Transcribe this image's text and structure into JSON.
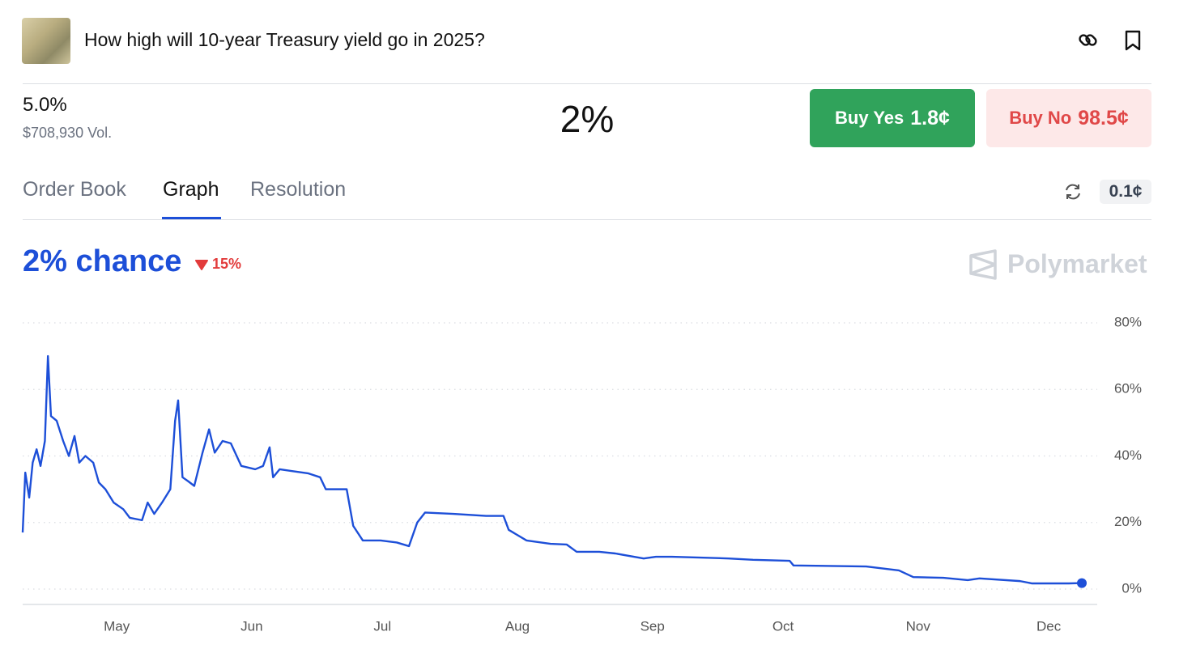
{
  "header": {
    "title": "How high will 10-year Treasury yield go in 2025?",
    "outcome": "5.0%",
    "volume": "$708,930 Vol.",
    "probability": "2%"
  },
  "buttons": {
    "yes_label": "Buy Yes",
    "yes_price": "1.8¢",
    "no_label": "Buy No",
    "no_price": "98.5¢"
  },
  "tabs": [
    "Order Book",
    "Graph",
    "Resolution"
  ],
  "tick_size": "0.1¢",
  "summary": {
    "chance": "2% chance",
    "change": "15%",
    "brand": "Polymarket"
  },
  "chart_data": {
    "type": "line",
    "x": [
      99.4,
      100.0,
      100.9,
      101.7,
      102.6,
      103.5,
      104.5,
      105.2,
      105.9,
      107.2,
      108.7,
      110.0,
      111.3,
      112.4,
      113.8,
      115.6,
      116.9,
      118.4,
      120.3,
      122.5,
      124.0,
      126.8,
      128.1,
      129.6,
      131.4,
      133.3,
      134.4,
      135.1,
      136.1,
      137.4,
      138.8,
      140.7,
      142.2,
      143.5,
      145.3,
      147.2,
      149.6,
      152.8,
      154.6,
      156.1,
      156.9,
      158.4,
      161.1,
      164.9,
      167.7,
      169.0,
      173.8,
      175.3,
      177.5,
      181.6,
      185.3,
      188.1,
      190.0,
      191.8,
      198.3,
      205.8,
      209.8,
      211.0,
      215.1,
      220.6,
      224.3,
      226.6,
      231.8,
      235.5,
      242.0,
      244.8,
      248.5,
      254.1,
      261.5,
      267.1,
      275.5,
      276.4,
      293.1,
      300.6,
      303.9,
      310.8,
      316.4,
      319.1,
      328.4,
      331.2,
      339.6,
      342.6
    ],
    "series": [
      {
        "name": "5.0%",
        "color": "#1d4fd8",
        "values": [
          17,
          35,
          27.5,
          38,
          42,
          37,
          44.5,
          70,
          52,
          50.6,
          44.5,
          40,
          46,
          38,
          40,
          38,
          32,
          30,
          26,
          24,
          21.4,
          20.7,
          26,
          22.6,
          26,
          30,
          50.6,
          56.7,
          33.6,
          32.4,
          31,
          41,
          48,
          41,
          44.5,
          43.8,
          37,
          36,
          37,
          42.6,
          33.6,
          36,
          35.5,
          34.8,
          33.6,
          30,
          30,
          19,
          14.6,
          14.6,
          14,
          12.9,
          20,
          23,
          22.6,
          22,
          22,
          17.8,
          14.6,
          13.6,
          13.4,
          11.2,
          11.2,
          10.7,
          9.2,
          9.7,
          9.7,
          9.5,
          9.2,
          8.8,
          8.5,
          7.1,
          6.8,
          5.6,
          3.6,
          3.4,
          2.7,
          3.2,
          2.4,
          1.7,
          1.7,
          1.8
        ]
      }
    ],
    "xlim": [
      99.4,
      342.6
    ],
    "xticks": [
      {
        "value": 121,
        "label": "May"
      },
      {
        "value": 152,
        "label": "Jun"
      },
      {
        "value": 182,
        "label": "Jul"
      },
      {
        "value": 213,
        "label": "Aug"
      },
      {
        "value": 244,
        "label": "Sep"
      },
      {
        "value": 274,
        "label": "Oct"
      },
      {
        "value": 305,
        "label": "Nov"
      },
      {
        "value": 335,
        "label": "Dec"
      }
    ],
    "ylim": [
      0,
      80
    ],
    "yticks": [
      {
        "value": 0,
        "label": "0%"
      },
      {
        "value": 20,
        "label": "20%"
      },
      {
        "value": 40,
        "label": "40%"
      },
      {
        "value": 60,
        "label": "60%"
      },
      {
        "value": 80,
        "label": "80%"
      }
    ],
    "grid": true
  }
}
